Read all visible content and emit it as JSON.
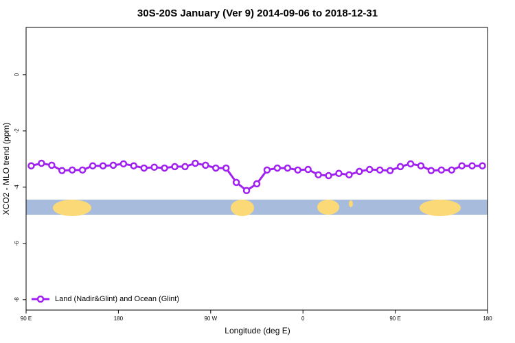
{
  "chart_data": {
    "type": "line",
    "title": "30S-20S January (Ver 9)   2014-09-06 to 2018-12-31",
    "x_label": "Longitude (deg E)",
    "y_label": "XCO2 - MLO trend (ppm)",
    "x": [
      95,
      105,
      115,
      125,
      135,
      145,
      155,
      165,
      175,
      185,
      195,
      205,
      215,
      225,
      235,
      245,
      255,
      265,
      275,
      285,
      295,
      305,
      315,
      325,
      335,
      345,
      355,
      365,
      375,
      385,
      395,
      405,
      415,
      425,
      435,
      445,
      455,
      465,
      475,
      485,
      495,
      505,
      515,
      525,
      535
    ],
    "series": [
      {
        "name": "Land (Nadir&Glint) and Ocean (Glint)",
        "color": "#a020f0",
        "values": [
          -3.24,
          -3.15,
          -3.22,
          -3.41,
          -3.39,
          -3.39,
          -3.24,
          -3.24,
          -3.22,
          -3.17,
          -3.24,
          -3.32,
          -3.29,
          -3.32,
          -3.27,
          -3.27,
          -3.15,
          -3.22,
          -3.32,
          -3.32,
          -3.83,
          -4.12,
          -3.88,
          -3.39,
          -3.32,
          -3.32,
          -3.39,
          -3.37,
          -3.56,
          -3.59,
          -3.51,
          -3.56,
          -3.44,
          -3.37,
          -3.39,
          -3.41,
          -3.27,
          -3.17,
          -3.24,
          -3.41,
          -3.39,
          -3.39,
          -3.24,
          -3.24,
          -3.24
        ]
      }
    ],
    "xlim": [
      90,
      540
    ],
    "ylim": [
      -8.37,
      1.68
    ],
    "xticks": [
      {
        "value": 90,
        "label": "90 E"
      },
      180,
      {
        "value": 270,
        "label": "90 W"
      },
      {
        "value": 360,
        "label": "0"
      },
      {
        "value": 450,
        "label": "90 E"
      },
      {
        "value": 540,
        "label": "180"
      }
    ],
    "yticks": [
      0,
      -2,
      -4,
      -6,
      -8
    ],
    "legend": "bottom-left"
  }
}
